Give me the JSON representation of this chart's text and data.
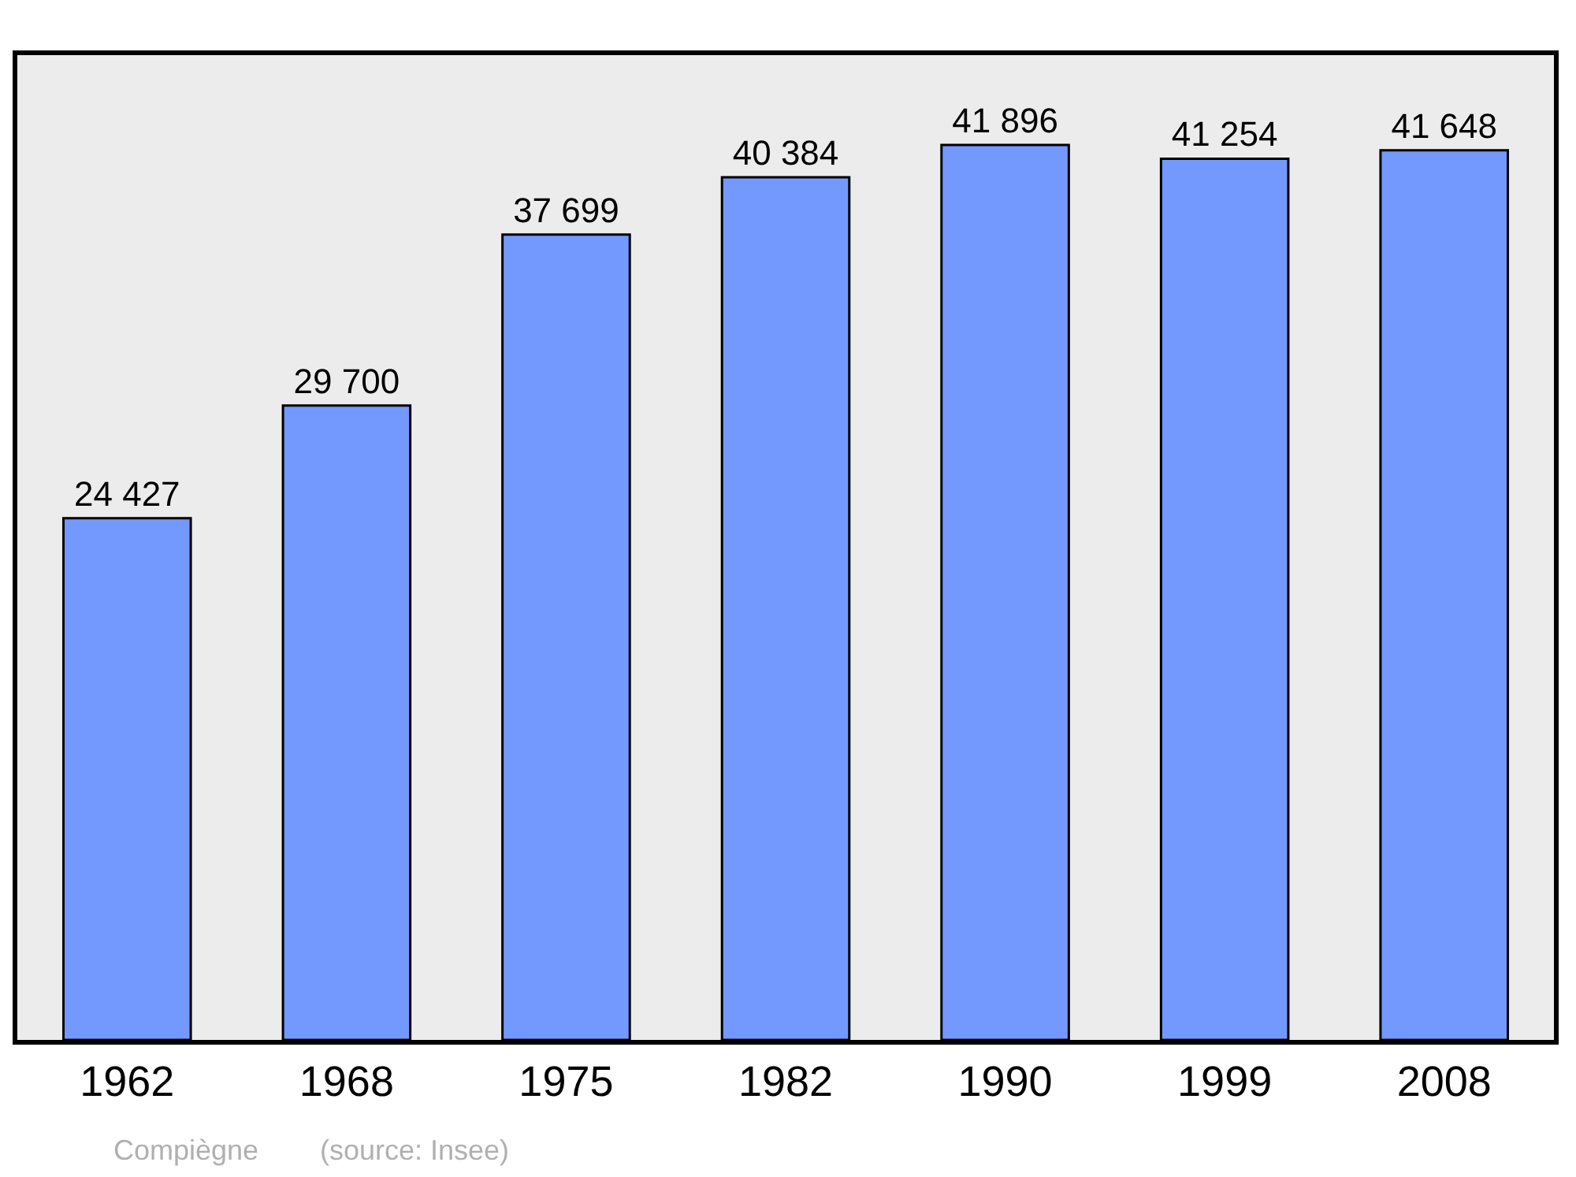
{
  "chart_data": {
    "type": "bar",
    "categories": [
      "1962",
      "1968",
      "1975",
      "1982",
      "1990",
      "1999",
      "2008"
    ],
    "values": [
      24427,
      29700,
      37699,
      40384,
      41896,
      41254,
      41648
    ],
    "value_labels": [
      "24 427",
      "29 700",
      "37 699",
      "40 384",
      "41 896",
      "41 254",
      "41 648"
    ],
    "color": "#7399ff",
    "ylim": [
      0,
      46100
    ],
    "tick_labels": "x",
    "grid": false,
    "legend": false,
    "annotations": [
      "Compiègne",
      "(source: Insee)"
    ]
  }
}
